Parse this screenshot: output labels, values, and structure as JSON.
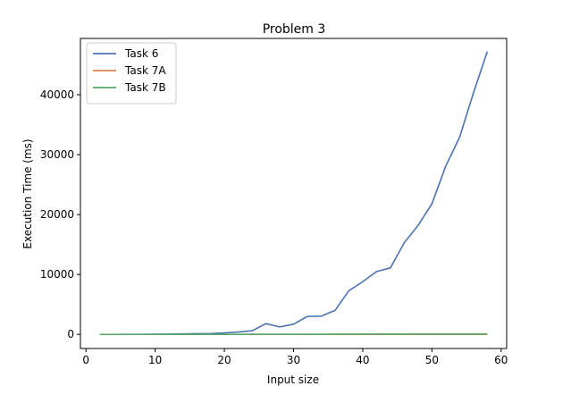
{
  "chart_data": {
    "type": "line",
    "title": "Problem 3",
    "xlabel": "Input size",
    "ylabel": "Execution Time (ms)",
    "xlim": [
      -0.8,
      60.8
    ],
    "ylim": [
      -2350,
      49400
    ],
    "xticks": [
      0,
      10,
      20,
      30,
      40,
      50,
      60
    ],
    "yticks": [
      0,
      10000,
      20000,
      30000,
      40000
    ],
    "grid": false,
    "legend_position": "top-left",
    "x": [
      2,
      4,
      6,
      8,
      10,
      12,
      14,
      16,
      18,
      20,
      22,
      24,
      26,
      28,
      30,
      32,
      34,
      36,
      38,
      40,
      42,
      44,
      46,
      48,
      50,
      52,
      54,
      56,
      58
    ],
    "series": [
      {
        "name": "Task 6",
        "color": "#4c72b0",
        "values": [
          0,
          0,
          5,
          10,
          20,
          40,
          80,
          120,
          150,
          250,
          400,
          600,
          1800,
          1250,
          1700,
          3000,
          3050,
          4000,
          7300,
          8800,
          10500,
          11100,
          15300,
          18200,
          21800,
          28100,
          32900,
          40300,
          47200
        ]
      },
      {
        "name": "Task 7A",
        "color": "#dd8452",
        "values": [
          0,
          0,
          0,
          0,
          0,
          0,
          0,
          0,
          0,
          0,
          0,
          0,
          0,
          0,
          0,
          0,
          0,
          0,
          0,
          0,
          10,
          10,
          10,
          10,
          10,
          10,
          10,
          10,
          10
        ]
      },
      {
        "name": "Task 7B",
        "color": "#55a868",
        "values": [
          0,
          0,
          0,
          0,
          5,
          5,
          5,
          10,
          10,
          10,
          10,
          20,
          20,
          30,
          30,
          30,
          30,
          40,
          40,
          50,
          60,
          50,
          50,
          60,
          60,
          60,
          70,
          70,
          80
        ]
      }
    ]
  }
}
